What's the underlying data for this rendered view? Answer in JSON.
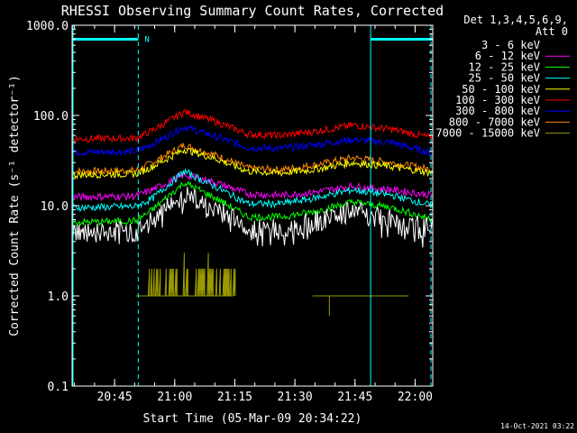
{
  "chart_data": {
    "type": "line",
    "title": "RHESSI Observing Summary Count Rates, Corrected",
    "xlabel": "Start Time (05-Mar-09 20:34:22)",
    "ylabel": "Corrected Count Rate (s⁻¹ detector⁻¹)",
    "yscale": "log",
    "ylim": [
      0.1,
      1000
    ],
    "xlim_minutes_after_start": [
      0,
      90
    ],
    "x_tick_labels": [
      "20:45",
      "21:00",
      "21:15",
      "21:30",
      "21:45",
      "22:00"
    ],
    "x_tick_minutes_after_start": [
      10.6,
      25.6,
      40.6,
      55.6,
      70.6,
      85.6
    ],
    "y_tick_labels": [
      "0.1",
      "1.0",
      "10.0",
      "100.0",
      "1000.0"
    ],
    "y_ticks": [
      0.1,
      1,
      10,
      100,
      1000
    ],
    "legend_header_line1": "Det 1,3,4,5,6,9,",
    "legend_header_line2": "Att 0",
    "legend_position": "top-right",
    "footer_date": "14-Oct-2021 03:22",
    "night_marker_label": "N",
    "night_bars_minutes": [
      [
        0,
        16.5
      ],
      [
        74.5,
        90
      ]
    ],
    "dashed_markers_minutes": [
      16.5,
      90
    ],
    "solid_markers_minutes": [
      0,
      74.5
    ],
    "marker_color": "#00ffff",
    "series": [
      {
        "name": "3 - 6 keV",
        "color": "#ffffff",
        "trace_color": "#000000",
        "x": [
          0,
          16,
          20,
          28,
          36,
          44,
          52,
          60,
          70,
          80,
          90
        ],
        "y": [
          5.0,
          5.2,
          7.0,
          13.5,
          9.0,
          5.5,
          5.5,
          6.5,
          8.5,
          7.0,
          5.3
        ]
      },
      {
        "name": "6 - 12 keV",
        "color": "#ff00ff",
        "x": [
          0,
          16,
          20,
          28,
          36,
          44,
          52,
          60,
          70,
          80,
          90
        ],
        "y": [
          12.5,
          12.8,
          15.0,
          22.0,
          18.0,
          13.5,
          13.0,
          14.0,
          16.5,
          15.0,
          13.0
        ]
      },
      {
        "name": "12 - 25 keV",
        "color": "#00ff00",
        "x": [
          0,
          16,
          20,
          28,
          36,
          44,
          52,
          60,
          70,
          80,
          90
        ],
        "y": [
          6.5,
          6.8,
          9.0,
          18.0,
          12.0,
          7.5,
          7.5,
          8.5,
          11.0,
          9.5,
          7.0
        ]
      },
      {
        "name": "25 - 50 keV",
        "color": "#00ffff",
        "x": [
          0,
          16,
          20,
          28,
          36,
          44,
          52,
          60,
          70,
          80,
          90
        ],
        "y": [
          9.5,
          9.8,
          12.0,
          24.0,
          16.0,
          10.5,
          10.5,
          12.0,
          15.0,
          13.0,
          10.0
        ]
      },
      {
        "name": "50 - 100 keV",
        "color": "#ffff00",
        "x": [
          0,
          16,
          20,
          28,
          36,
          44,
          52,
          60,
          70,
          80,
          90
        ],
        "y": [
          22.0,
          22.5,
          27.0,
          42.0,
          33.0,
          24.0,
          23.0,
          25.0,
          30.0,
          27.0,
          23.0
        ]
      },
      {
        "name": "100 - 300 keV",
        "color": "#ff0000",
        "x": [
          0,
          16,
          20,
          28,
          36,
          44,
          52,
          60,
          70,
          80,
          90
        ],
        "y": [
          55.0,
          56.0,
          68.0,
          110.0,
          85.0,
          62.0,
          60.0,
          66.0,
          78.0,
          70.0,
          56.0
        ]
      },
      {
        "name": "300 - 800 keV",
        "color": "#0000ff",
        "x": [
          0,
          16,
          20,
          28,
          36,
          44,
          52,
          60,
          70,
          80,
          90
        ],
        "y": [
          39.0,
          40.0,
          48.0,
          75.0,
          58.0,
          44.0,
          43.0,
          47.0,
          54.0,
          50.0,
          38.0
        ]
      },
      {
        "name": "800 - 7000 keV",
        "color": "#ff8c00",
        "x": [
          0,
          16,
          20,
          28,
          36,
          44,
          52,
          60,
          70,
          80,
          90
        ],
        "y": [
          24.0,
          24.5,
          30.0,
          47.0,
          36.0,
          26.0,
          25.0,
          28.0,
          34.0,
          30.0,
          25.0
        ]
      },
      {
        "name": "7000 - 15000 keV",
        "color": "#999900",
        "x": [
          19,
          22,
          25,
          28,
          31,
          34,
          37,
          38,
          60,
          63,
          70,
          77,
          84
        ],
        "y": [
          1.0,
          2.0,
          2.0,
          3.0,
          2.0,
          3.0,
          2.0,
          1.0,
          1.0,
          1.0,
          1.0,
          1.0,
          1.0
        ]
      }
    ]
  }
}
